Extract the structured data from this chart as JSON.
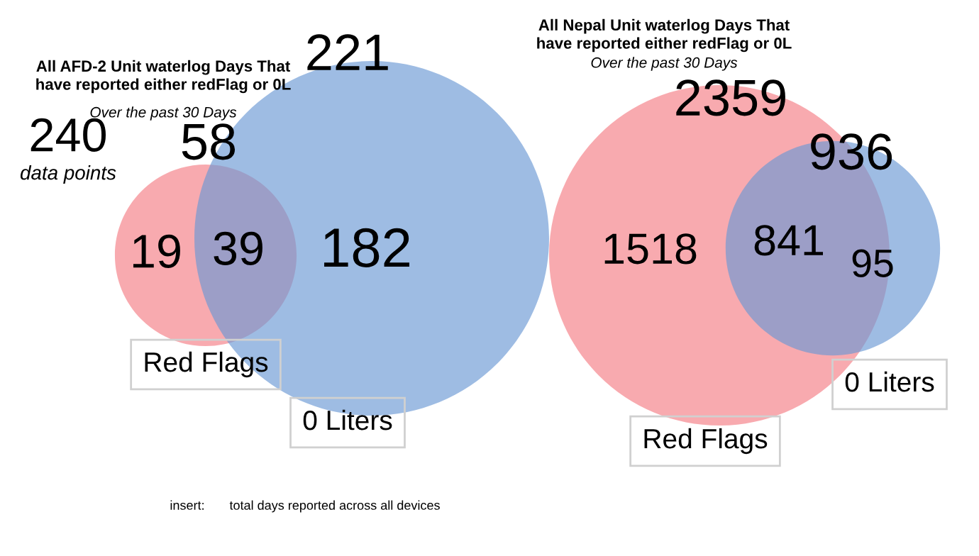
{
  "chart_data": [
    {
      "type": "other",
      "title": "All AFD-2 Unit waterlog Days That\nhave reported either redFlag or 0L",
      "subtitle": "Over the past 30 Days",
      "categories": [
        "Red Flags",
        "0 Liters"
      ],
      "values": [
        58,
        221
      ],
      "data_labels": true,
      "colors": [
        "#f47c84",
        "#6a98d4"
      ],
      "annotations": [
        "19",
        "39",
        "182",
        "240",
        "data points",
        "insert:",
        "total days reported across all devices"
      ]
    },
    {
      "type": "other",
      "title": "All Nepal Unit waterlog Days That\nhave reported either redFlag or 0L",
      "subtitle": "Over the past 30 Days",
      "categories": [
        "Red Flags",
        "0 Liters"
      ],
      "values": [
        2359,
        936
      ],
      "data_labels": true,
      "colors": [
        "#f47c84",
        "#6a98d4"
      ],
      "annotations": [
        "1518",
        "841",
        "95"
      ]
    }
  ]
}
